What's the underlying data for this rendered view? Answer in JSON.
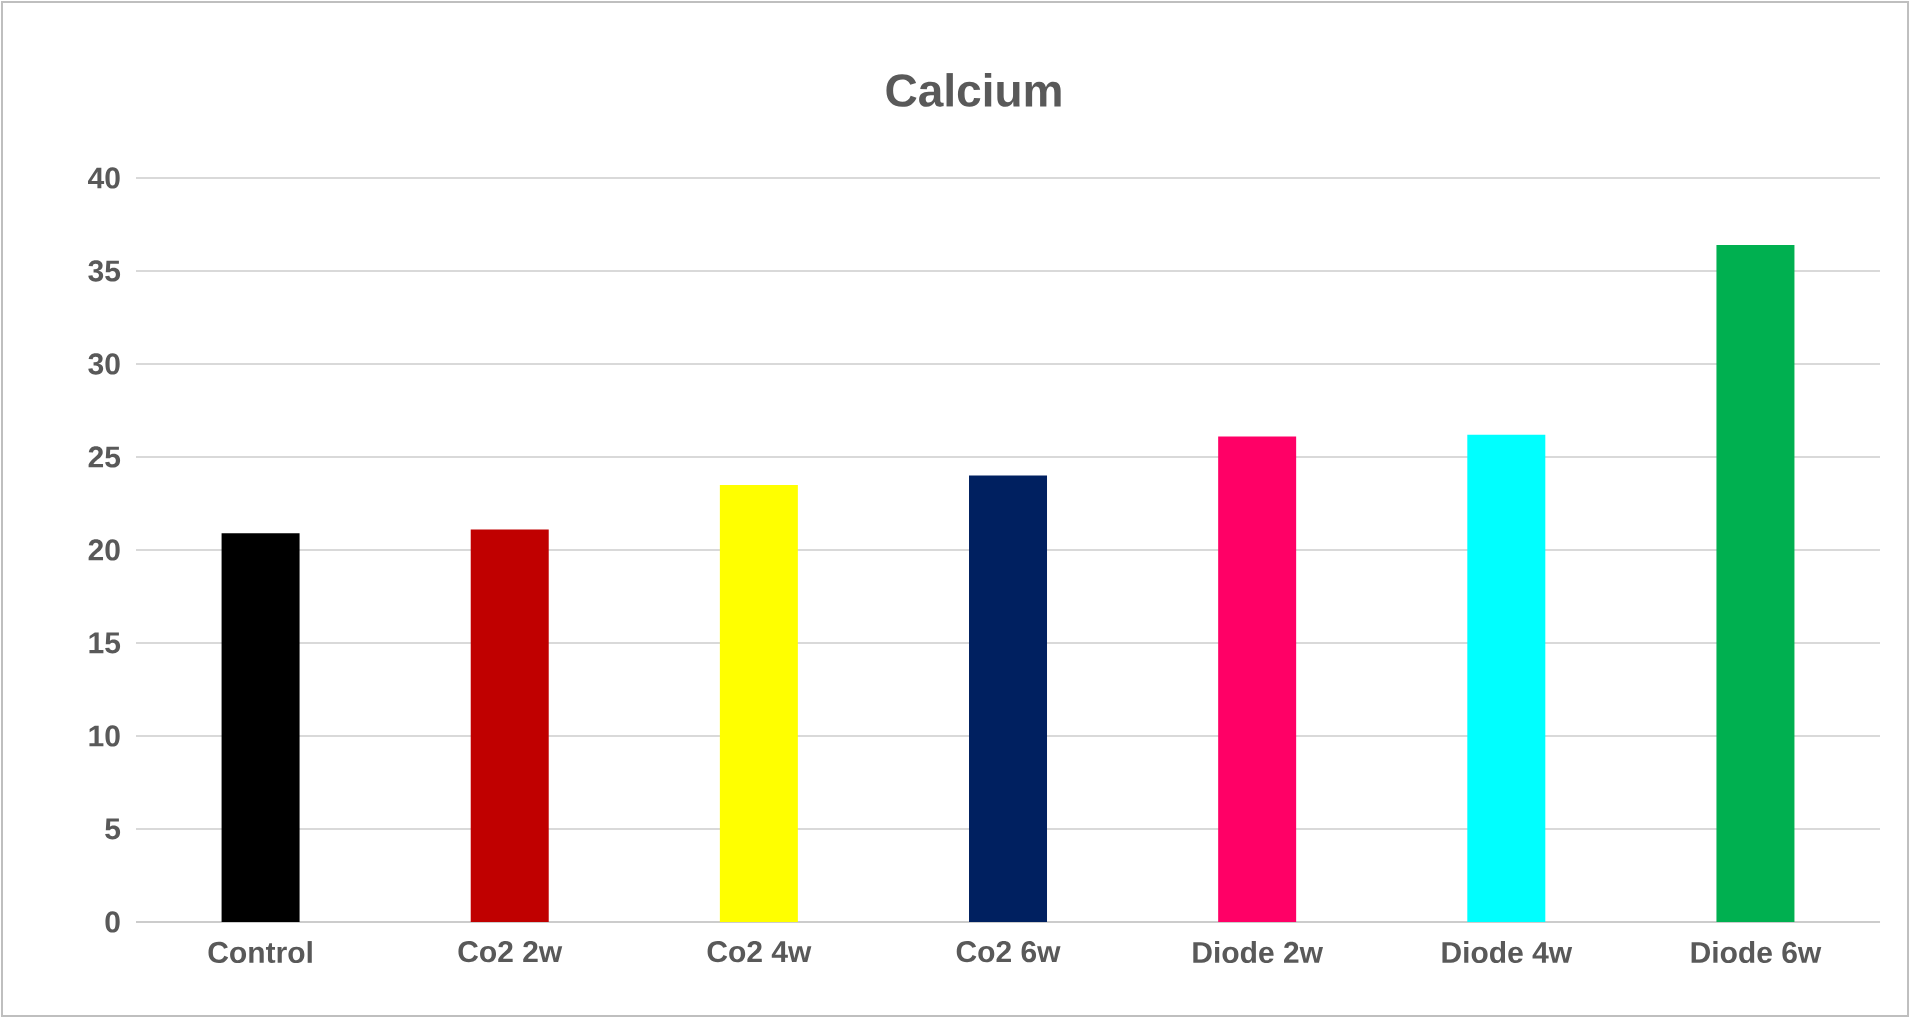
{
  "chart_data": {
    "type": "bar",
    "title": "Calcium",
    "categories": [
      "Control",
      "Co2 2w",
      "Co2 4w",
      "Co2 6w",
      "Diode 2w",
      "Diode 4w",
      "Diode 6w"
    ],
    "values": [
      20.9,
      21.1,
      23.5,
      24.0,
      26.1,
      26.2,
      36.4
    ],
    "colors": [
      "#000000",
      "#c00000",
      "#ffff00",
      "#002060",
      "#ff0066",
      "#00ffff",
      "#00b050"
    ],
    "ylim": [
      0,
      40
    ],
    "yticks": [
      0,
      5,
      10,
      15,
      20,
      25,
      30,
      35,
      40
    ],
    "grid": "y"
  }
}
